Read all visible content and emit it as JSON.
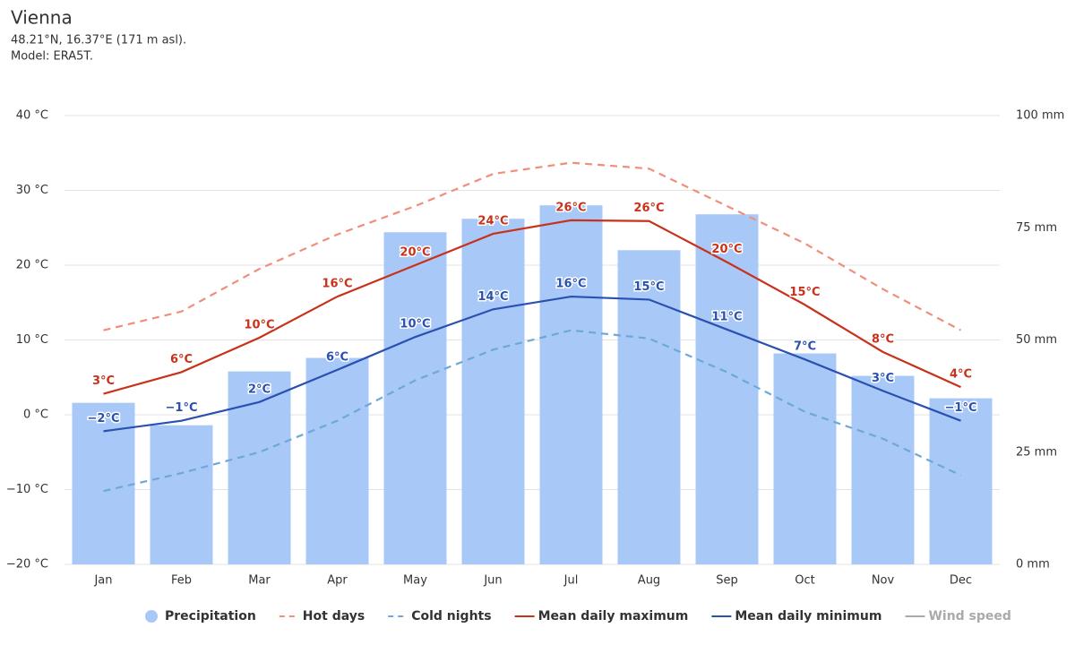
{
  "chart_data": {
    "type": "combo",
    "title": "Vienna",
    "subtitle": [
      "48.21°N, 16.37°E (171 m asl).",
      "Model: ERA5T."
    ],
    "categories": [
      "Jan",
      "Feb",
      "Mar",
      "Apr",
      "May",
      "Jun",
      "Jul",
      "Aug",
      "Sep",
      "Oct",
      "Nov",
      "Dec"
    ],
    "ylim": [
      -20,
      40
    ],
    "yticks": [
      {
        "value": -20,
        "label": "−20 °C"
      },
      {
        "value": -10,
        "label": "−10 °C"
      },
      {
        "value": 0,
        "label": "0 °C"
      },
      {
        "value": 10,
        "label": "10 °C"
      },
      {
        "value": 20,
        "label": "20 °C"
      },
      {
        "value": 30,
        "label": "30 °C"
      },
      {
        "value": 40,
        "label": "40 °C"
      }
    ],
    "y2lim": [
      0,
      100
    ],
    "y2ticks": [
      {
        "value": 0,
        "label": "0 mm"
      },
      {
        "value": 25,
        "label": "25 mm"
      },
      {
        "value": 50,
        "label": "50 mm"
      },
      {
        "value": 75,
        "label": "75 mm"
      },
      {
        "value": 100,
        "label": "100 mm"
      }
    ],
    "grid": true,
    "legend": "bottom",
    "series": [
      {
        "name": "Precipitation",
        "type": "bar",
        "axis": "y2",
        "color": "#a8c8f8",
        "values": [
          36,
          31,
          43,
          46,
          74,
          77,
          80,
          70,
          78,
          47,
          42,
          37
        ]
      },
      {
        "name": "Hot days",
        "type": "line",
        "dash": true,
        "color": "#ef8f7b",
        "values": [
          11.3,
          13.8,
          19.5,
          24.1,
          27.9,
          32.2,
          33.7,
          32.9,
          27.9,
          22.9,
          16.8,
          11.3
        ]
      },
      {
        "name": "Cold nights",
        "type": "line",
        "dash": true,
        "color": "#6ea8d8",
        "values": [
          -10.2,
          -7.8,
          -5.0,
          -0.8,
          4.6,
          8.7,
          11.3,
          10.2,
          5.7,
          0.4,
          -3.2,
          -8.1
        ]
      },
      {
        "name": "Mean daily maximum",
        "type": "line",
        "color": "#c8321a",
        "values": [
          2.8,
          5.7,
          10.3,
          15.8,
          20.0,
          24.2,
          26.0,
          25.9,
          20.4,
          14.7,
          8.4,
          3.7
        ],
        "value_labels": [
          "3°C",
          "6°C",
          "10°C",
          "16°C",
          "20°C",
          "24°C",
          "26°C",
          "26°C",
          "20°C",
          "15°C",
          "8°C",
          "4°C"
        ]
      },
      {
        "name": "Mean daily minimum",
        "type": "line",
        "color": "#2a50b0",
        "values": [
          -2.2,
          -0.8,
          1.7,
          6.0,
          10.4,
          14.1,
          15.8,
          15.4,
          11.4,
          7.4,
          3.2,
          -0.8
        ],
        "value_labels": [
          "−2°C",
          "−1°C",
          "2°C",
          "6°C",
          "10°C",
          "14°C",
          "16°C",
          "15°C",
          "11°C",
          "7°C",
          "3°C",
          "−1°C"
        ]
      },
      {
        "name": "Wind speed",
        "type": "line",
        "hidden": true,
        "color": "#aaaaaa",
        "values": [
          null,
          null,
          null,
          null,
          null,
          null,
          null,
          null,
          null,
          null,
          null,
          null
        ]
      }
    ]
  }
}
